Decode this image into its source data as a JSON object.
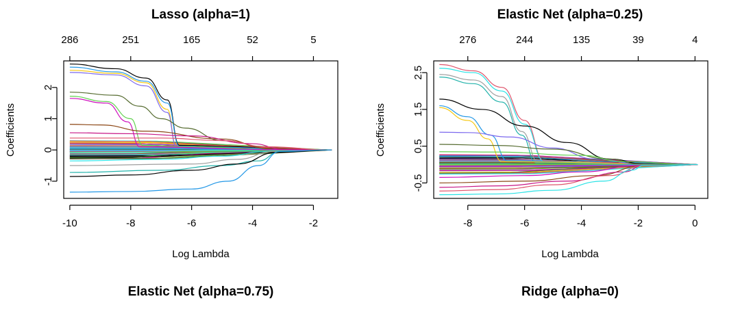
{
  "chart_data": [
    {
      "type": "line",
      "title": "Lasso (alpha=1)",
      "xlabel": "Log Lambda",
      "ylabel": "Coefficients",
      "xlim": [
        -10.2,
        -1.2
      ],
      "ylim": [
        -1.55,
        2.85
      ],
      "x_ticks": [
        -10,
        -8,
        -6,
        -4,
        -2
      ],
      "y_ticks": [
        -1,
        0,
        1,
        2
      ],
      "top_axis_x": [
        -10,
        -8,
        -6,
        -4,
        -2
      ],
      "top_axis_labels": [
        "286",
        "251",
        "165",
        "52",
        "5"
      ],
      "x_end": -1.4,
      "x_min_data": -10,
      "series": [
        {
          "values": [
            [
              -10,
              2.75
            ],
            [
              -8.5,
              2.6
            ],
            [
              -7.5,
              2.3
            ],
            [
              -6.8,
              1.6
            ],
            [
              -6.4,
              0.15
            ],
            [
              -4.5,
              0.1
            ],
            [
              -3.2,
              0.02
            ],
            [
              -1.4,
              0
            ]
          ]
        },
        {
          "values": [
            [
              -10,
              2.65
            ],
            [
              -8.5,
              2.5
            ],
            [
              -7.5,
              2.2
            ],
            [
              -6.8,
              1.5
            ],
            [
              -6.4,
              0.12
            ],
            [
              -4.5,
              0.08
            ],
            [
              -3.2,
              0.02
            ],
            [
              -1.4,
              0
            ]
          ]
        },
        {
          "values": [
            [
              -10,
              2.55
            ],
            [
              -8.5,
              2.45
            ],
            [
              -7.5,
              2.15
            ],
            [
              -6.8,
              1.3
            ],
            [
              -6.5,
              0.1
            ],
            [
              -3.2,
              0.01
            ],
            [
              -1.4,
              0
            ]
          ]
        },
        {
          "values": [
            [
              -10,
              2.48
            ],
            [
              -8.5,
              2.4
            ],
            [
              -7.5,
              2.05
            ],
            [
              -6.8,
              1.2
            ],
            [
              -6.5,
              0.1
            ],
            [
              -3.2,
              0.01
            ],
            [
              -1.4,
              0
            ]
          ]
        },
        {
          "values": [
            [
              -10,
              1.85
            ],
            [
              -8.5,
              1.75
            ],
            [
              -7.7,
              1.4
            ],
            [
              -7,
              1.0
            ],
            [
              -6.2,
              0.7
            ],
            [
              -5,
              0.3
            ],
            [
              -3.2,
              0.02
            ],
            [
              -1.4,
              0
            ]
          ]
        },
        {
          "values": [
            [
              -10,
              1.72
            ],
            [
              -8.8,
              1.55
            ],
            [
              -8,
              1.0
            ],
            [
              -7.6,
              0.15
            ],
            [
              -6,
              0.1
            ],
            [
              -3.2,
              0.01
            ],
            [
              -1.4,
              0
            ]
          ]
        },
        {
          "values": [
            [
              -10,
              1.65
            ],
            [
              -8.8,
              1.5
            ],
            [
              -8.1,
              0.9
            ],
            [
              -7.7,
              0.1
            ],
            [
              -3.2,
              0.01
            ],
            [
              -1.4,
              0
            ]
          ]
        },
        {
          "values": [
            [
              -10,
              0.82
            ],
            [
              -9,
              0.8
            ],
            [
              -7.5,
              0.6
            ],
            [
              -5,
              0.35
            ],
            [
              -3.5,
              0.05
            ],
            [
              -1.4,
              0
            ]
          ]
        },
        {
          "values": [
            [
              -10,
              0.55
            ],
            [
              -8,
              0.52
            ],
            [
              -6,
              0.45
            ],
            [
              -4,
              0.2
            ],
            [
              -3,
              0.02
            ],
            [
              -1.4,
              0
            ]
          ]
        },
        {
          "values": [
            [
              -10,
              0.38
            ],
            [
              -7,
              0.38
            ],
            [
              -5,
              0.3
            ],
            [
              -3.5,
              0.1
            ],
            [
              -1.4,
              0
            ]
          ]
        },
        {
          "values": [
            [
              -10,
              -0.35
            ],
            [
              -7,
              -0.3
            ],
            [
              -5,
              -0.2
            ],
            [
              -3.5,
              -0.05
            ],
            [
              -1.4,
              0
            ]
          ]
        },
        {
          "values": [
            [
              -10,
              -0.5
            ],
            [
              -6,
              -0.45
            ],
            [
              -4.5,
              -0.3
            ],
            [
              -3.3,
              -0.05
            ],
            [
              -1.4,
              0
            ]
          ]
        },
        {
          "values": [
            [
              -10,
              -0.72
            ],
            [
              -7,
              -0.65
            ],
            [
              -5,
              -0.5
            ],
            [
              -3.8,
              -0.35
            ],
            [
              -3.1,
              -0.05
            ],
            [
              -1.4,
              0
            ]
          ]
        },
        {
          "values": [
            [
              -10,
              -0.85
            ],
            [
              -8,
              -0.8
            ],
            [
              -6,
              -0.65
            ],
            [
              -4.5,
              -0.45
            ],
            [
              -3.2,
              -0.08
            ],
            [
              -1.4,
              0
            ]
          ]
        },
        {
          "values": [
            [
              -10,
              -1.35
            ],
            [
              -8,
              -1.33
            ],
            [
              -6,
              -1.25
            ],
            [
              -4.8,
              -1.0
            ],
            [
              -3.8,
              -0.5
            ],
            [
              -3.1,
              -0.05
            ],
            [
              -1.4,
              0
            ]
          ]
        }
      ]
    },
    {
      "type": "line",
      "title": "Elastic Net (alpha=0.25)",
      "xlabel": "Log Lambda",
      "ylabel": "Coefficients",
      "xlim": [
        -9.2,
        0.45
      ],
      "ylim": [
        -0.92,
        2.82
      ],
      "x_ticks": [
        -8,
        -6,
        -4,
        -2,
        0
      ],
      "y_ticks": [
        -0.5,
        0.5,
        1.5,
        2.5
      ],
      "top_axis_x": [
        -8,
        -6,
        -4,
        -2,
        0
      ],
      "top_axis_labels": [
        "276",
        "244",
        "135",
        "39",
        "4"
      ],
      "x_end": 0.1,
      "x_min_data": -9,
      "series": [
        {
          "values": [
            [
              -9,
              2.72
            ],
            [
              -7.8,
              2.55
            ],
            [
              -6.8,
              2.1
            ],
            [
              -6,
              1.2
            ],
            [
              -5.3,
              0.1
            ],
            [
              -3,
              0.05
            ],
            [
              -1.8,
              0.01
            ],
            [
              0.1,
              0
            ]
          ]
        },
        {
          "values": [
            [
              -9,
              2.62
            ],
            [
              -7.8,
              2.5
            ],
            [
              -6.8,
              2.0
            ],
            [
              -6,
              1.1
            ],
            [
              -5.3,
              0.08
            ],
            [
              -1.8,
              0.01
            ],
            [
              0.1,
              0
            ]
          ]
        },
        {
          "values": [
            [
              -9,
              2.45
            ],
            [
              -7.8,
              2.3
            ],
            [
              -6.8,
              1.85
            ],
            [
              -6.1,
              0.9
            ],
            [
              -5.5,
              0.05
            ],
            [
              -1.8,
              0.01
            ],
            [
              0.1,
              0
            ]
          ]
        },
        {
          "values": [
            [
              -9,
              2.38
            ],
            [
              -7.8,
              2.2
            ],
            [
              -6.8,
              1.7
            ],
            [
              -6.1,
              0.8
            ],
            [
              -5.6,
              0.05
            ],
            [
              -1.8,
              0.01
            ],
            [
              0.1,
              0
            ]
          ]
        },
        {
          "values": [
            [
              -9,
              1.78
            ],
            [
              -7.5,
              1.5
            ],
            [
              -6,
              1.05
            ],
            [
              -4.5,
              0.6
            ],
            [
              -3,
              0.15
            ],
            [
              -1.8,
              0.02
            ],
            [
              0.1,
              0
            ]
          ]
        },
        {
          "values": [
            [
              -9,
              1.6
            ],
            [
              -8,
              1.3
            ],
            [
              -7.2,
              0.8
            ],
            [
              -6.6,
              0.1
            ],
            [
              -1.8,
              0.01
            ],
            [
              0.1,
              0
            ]
          ]
        },
        {
          "values": [
            [
              -9,
              1.55
            ],
            [
              -8,
              1.2
            ],
            [
              -7.3,
              0.7
            ],
            [
              -6.8,
              0.08
            ],
            [
              0.1,
              0
            ]
          ]
        },
        {
          "values": [
            [
              -9,
              0.88
            ],
            [
              -8,
              0.87
            ],
            [
              -6.5,
              0.75
            ],
            [
              -5,
              0.45
            ],
            [
              -3.5,
              0.15
            ],
            [
              -2,
              0.02
            ],
            [
              0.1,
              0
            ]
          ]
        },
        {
          "values": [
            [
              -9,
              0.55
            ],
            [
              -7,
              0.52
            ],
            [
              -5,
              0.42
            ],
            [
              -3,
              0.15
            ],
            [
              -2,
              0.02
            ],
            [
              0.1,
              0
            ]
          ]
        },
        {
          "values": [
            [
              -9,
              0.35
            ],
            [
              -7,
              0.34
            ],
            [
              -4,
              0.25
            ],
            [
              -2.5,
              0.08
            ],
            [
              0.1,
              0
            ]
          ]
        },
        {
          "values": [
            [
              -9,
              -0.35
            ],
            [
              -6,
              -0.3
            ],
            [
              -4,
              -0.2
            ],
            [
              -2,
              -0.03
            ],
            [
              0.1,
              0
            ]
          ]
        },
        {
          "values": [
            [
              -9,
              -0.5
            ],
            [
              -6,
              -0.45
            ],
            [
              -3.5,
              -0.3
            ],
            [
              -1.8,
              -0.03
            ],
            [
              0.1,
              0
            ]
          ]
        },
        {
          "values": [
            [
              -9,
              -0.62
            ],
            [
              -7,
              -0.58
            ],
            [
              -4.5,
              -0.45
            ],
            [
              -2.5,
              -0.2
            ],
            [
              -1.8,
              -0.02
            ],
            [
              0.1,
              0
            ]
          ]
        },
        {
          "values": [
            [
              -9,
              -0.72
            ],
            [
              -7,
              -0.68
            ],
            [
              -5,
              -0.55
            ],
            [
              -3,
              -0.3
            ],
            [
              -1.8,
              -0.03
            ],
            [
              0.1,
              0
            ]
          ]
        },
        {
          "values": [
            [
              -9,
              -0.82
            ],
            [
              -7,
              -0.8
            ],
            [
              -5,
              -0.7
            ],
            [
              -3.2,
              -0.45
            ],
            [
              -2.2,
              -0.15
            ],
            [
              -1.8,
              -0.02
            ],
            [
              0.1,
              0
            ]
          ]
        }
      ]
    }
  ],
  "bottom_panels": [
    {
      "title": "Elastic Net (alpha=0.75)"
    },
    {
      "title": "Ridge (alpha=0)"
    }
  ]
}
